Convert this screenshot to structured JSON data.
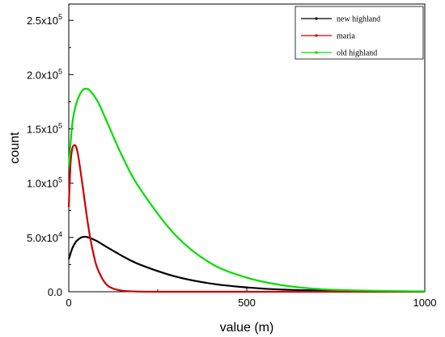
{
  "chart_data": {
    "type": "line",
    "xlabel": "value (m)",
    "ylabel": "count",
    "xlim": [
      0,
      1000
    ],
    "ylim": [
      0,
      265000
    ],
    "x_ticks": [
      0,
      500,
      1000
    ],
    "x_tick_labels": [
      "0",
      "500",
      "1000"
    ],
    "y_ticks": [
      0,
      50000,
      100000,
      150000,
      200000,
      250000
    ],
    "y_tick_labels": [
      {
        "mantissa": "0.0",
        "exponent": ""
      },
      {
        "mantissa": "5.0x10",
        "exponent": "4"
      },
      {
        "mantissa": "1.0x10",
        "exponent": "5"
      },
      {
        "mantissa": "1.5x10",
        "exponent": "5"
      },
      {
        "mantissa": "2.0x10",
        "exponent": "5"
      },
      {
        "mantissa": "2.5x10",
        "exponent": "5"
      }
    ],
    "legend_position": "top-right",
    "grid": false,
    "series": [
      {
        "name": "new highland",
        "color": "#000000",
        "x": [
          0,
          10,
          20,
          30,
          40,
          50,
          60,
          80,
          100,
          150,
          200,
          300,
          400,
          500,
          600,
          800,
          1000
        ],
        "y": [
          30000,
          40000,
          46000,
          49000,
          50500,
          50500,
          49500,
          46500,
          42500,
          33000,
          25000,
          14000,
          7500,
          4000,
          2000,
          500,
          100
        ]
      },
      {
        "name": "maria",
        "color": "#cc0000",
        "x": [
          0,
          5,
          10,
          15,
          20,
          25,
          30,
          40,
          50,
          60,
          70,
          80,
          100,
          120,
          150,
          200,
          250,
          300,
          1000
        ],
        "y": [
          78000,
          118000,
          132000,
          135000,
          134000,
          128000,
          118000,
          95000,
          71000,
          50000,
          34000,
          22000,
          9000,
          3500,
          1000,
          150,
          50,
          0,
          0
        ]
      },
      {
        "name": "old highland",
        "color": "#00dd00",
        "x": [
          0,
          10,
          20,
          30,
          40,
          50,
          60,
          80,
          100,
          150,
          200,
          300,
          400,
          500,
          600,
          700,
          800,
          1000
        ],
        "y": [
          115000,
          155000,
          172000,
          181000,
          186000,
          187000,
          185000,
          176000,
          162000,
          125000,
          95000,
          52000,
          26000,
          13000,
          6000,
          2500,
          1200,
          250
        ]
      }
    ]
  }
}
